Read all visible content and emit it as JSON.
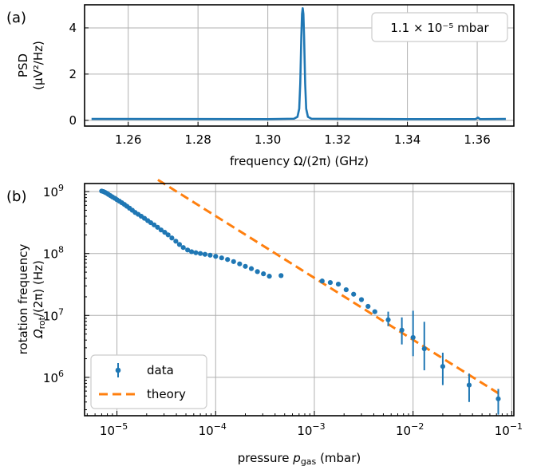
{
  "chart_data": [
    {
      "panel_label": "(a)",
      "type": "line",
      "xlabel": "frequency Ω/(2π) (GHz)",
      "ylabel_line1": "PSD",
      "ylabel_line2": "(μV²/Hz)",
      "annotation": "1.1 × 10⁻⁵ mbar",
      "xlim": [
        1.2475,
        1.3705
      ],
      "ylim": [
        -0.25,
        5.0
      ],
      "x_ticks": [
        {
          "v": 1.26,
          "label": "1.26"
        },
        {
          "v": 1.28,
          "label": "1.28"
        },
        {
          "v": 1.3,
          "label": "1.30"
        },
        {
          "v": 1.32,
          "label": "1.32"
        },
        {
          "v": 1.34,
          "label": "1.34"
        },
        {
          "v": 1.36,
          "label": "1.36"
        }
      ],
      "y_ticks": [
        {
          "v": 0,
          "label": "0"
        },
        {
          "v": 2,
          "label": "2"
        },
        {
          "v": 4,
          "label": "4"
        }
      ],
      "grid": true,
      "series": [
        {
          "color": "#1f77b4",
          "x": [
            1.2495,
            1.3,
            1.3075,
            1.3085,
            1.309,
            1.3093,
            1.3096,
            1.3098,
            1.31,
            1.3102,
            1.3104,
            1.3107,
            1.311,
            1.3115,
            1.3125,
            1.34,
            1.3595,
            1.3602,
            1.3608,
            1.3682
          ],
          "y": [
            0.06,
            0.05,
            0.07,
            0.15,
            0.5,
            1.6,
            3.6,
            4.6,
            4.85,
            4.6,
            3.6,
            1.6,
            0.5,
            0.15,
            0.07,
            0.05,
            0.05,
            0.12,
            0.05,
            0.06
          ]
        }
      ]
    },
    {
      "panel_label": "(b)",
      "type": "scatter",
      "xscale": "log",
      "yscale": "log",
      "xlabel": "pressure p_gas (mbar)",
      "xlabel_main": "pressure ",
      "xlabel_var": "p",
      "xlabel_sub": "gas",
      "xlabel_unit": " (mbar)",
      "ylabel_line1": "rotation frequency",
      "ylabel_line2": "Ω_rot/(2π) (Hz)",
      "ylabel_var": "Ω",
      "ylabel_sub": "rot",
      "ylabel_unit": "/(2π) (Hz)",
      "xlim": [
        4.7e-06,
        0.105
      ],
      "ylim": [
        240000.0,
        1350000000.0
      ],
      "x_ticks": [
        {
          "v": 1e-05,
          "base": "10",
          "exp": "−5"
        },
        {
          "v": 0.0001,
          "base": "10",
          "exp": "−4"
        },
        {
          "v": 0.001,
          "base": "10",
          "exp": "−3"
        },
        {
          "v": 0.01,
          "base": "10",
          "exp": "−2"
        },
        {
          "v": 0.1,
          "base": "10",
          "exp": "−1"
        }
      ],
      "y_ticks": [
        {
          "v": 1000000.0,
          "base": "10",
          "exp": "6"
        },
        {
          "v": 10000000.0,
          "base": "10",
          "exp": "7"
        },
        {
          "v": 100000000.0,
          "base": "10",
          "exp": "8"
        },
        {
          "v": 1000000000.0,
          "base": "10",
          "exp": "9"
        }
      ],
      "grid": true,
      "legend": {
        "placement": "lower-left",
        "entries": [
          {
            "label": "data",
            "marker": "errorbar-point",
            "color": "#1f77b4"
          },
          {
            "label": "theory",
            "marker": "dashed-line",
            "color": "#ff7f0e"
          }
        ]
      },
      "series": [
        {
          "name": "data",
          "color": "#1f77b4",
          "x": [
            7e-06,
            7.3e-06,
            7.6e-06,
            7.9e-06,
            8.2e-06,
            8.6e-06,
            9e-06,
            9.5e-06,
            1e-05,
            1.06e-05,
            1.12e-05,
            1.19e-05,
            1.26e-05,
            1.34e-05,
            1.43e-05,
            1.53e-05,
            1.64e-05,
            1.76e-05,
            1.9e-05,
            2.05e-05,
            2.2e-05,
            2.38e-05,
            2.58e-05,
            2.8e-05,
            3.05e-05,
            3.3e-05,
            3.6e-05,
            3.95e-05,
            4.3e-05,
            4.7e-05,
            5.2e-05,
            5.7e-05,
            6.3e-05,
            7e-05,
            7.8e-05,
            8.8e-05,
            0.0001,
            0.000115,
            0.000132,
            0.000152,
            0.000175,
            0.0002,
            0.00023,
            0.000265,
            0.000305,
            0.00035,
            0.00046,
            0.0012,
            0.00145,
            0.00175,
            0.0021,
            0.0025,
            0.003,
            0.0035,
            0.0041,
            0.0056,
            0.0077,
            0.01,
            0.013,
            0.02,
            0.037,
            0.073
          ],
          "y": [
            1020000000.0,
            1000000000.0,
            970000000.0,
            940000000.0,
            900000000.0,
            860000000.0,
            820000000.0,
            780000000.0,
            740000000.0,
            700000000.0,
            660000000.0,
            620000000.0,
            580000000.0,
            540000000.0,
            500000000.0,
            460000000.0,
            430000000.0,
            400000000.0,
            370000000.0,
            340000000.0,
            315000000.0,
            290000000.0,
            265000000.0,
            240000000.0,
            220000000.0,
            200000000.0,
            178000000.0,
            158000000.0,
            140000000.0,
            125000000.0,
            114000000.0,
            107000000.0,
            103000000.0,
            100000000.0,
            97000000.0,
            94000000.0,
            90000000.0,
            85000000.0,
            80000000.0,
            74000000.0,
            68000000.0,
            62000000.0,
            57000000.0,
            51000000.0,
            47000000.0,
            43000000.0,
            44000000.0,
            36000000.0,
            34000000.0,
            32000000.0,
            26000000.0,
            22000000.0,
            18000000.0,
            14000000.0,
            11500000.0,
            8500000.0,
            5800000.0,
            4400000.0,
            2900000.0,
            1500000.0,
            750000.0,
            450000.0
          ],
          "err_lo": [
            0,
            0,
            0,
            0,
            0,
            0,
            0,
            0,
            0,
            0,
            0,
            0,
            0,
            0,
            0,
            0,
            0,
            0,
            0,
            0,
            0,
            0,
            0,
            0,
            0,
            0,
            0,
            0,
            0,
            0,
            0,
            0,
            0,
            0,
            0,
            0,
            0,
            0,
            0,
            0,
            0,
            0,
            0,
            0,
            0,
            0,
            0,
            0,
            0,
            0,
            0,
            0,
            0,
            0,
            0,
            1800000.0,
            2400000.0,
            2200000.0,
            1600000.0,
            750000.0,
            350000.0,
            200000.0
          ],
          "err_hi": [
            0,
            0,
            0,
            0,
            0,
            0,
            0,
            0,
            0,
            0,
            0,
            0,
            0,
            0,
            0,
            0,
            0,
            0,
            0,
            0,
            0,
            0,
            0,
            0,
            0,
            0,
            0,
            0,
            0,
            0,
            0,
            0,
            0,
            0,
            0,
            0,
            0,
            0,
            0,
            0,
            0,
            0,
            0,
            0,
            0,
            0,
            0,
            0,
            0,
            0,
            0,
            0,
            0,
            0,
            0,
            3000000.0,
            3500000.0,
            7500000.0,
            5000000.0,
            1000000.0,
            400000.0,
            200000.0
          ]
        },
        {
          "name": "theory",
          "color": "#ff7f0e",
          "x": [
            2.6e-05,
            0.075
          ],
          "y": [
            1550000000.0,
            540000.0
          ]
        }
      ]
    }
  ]
}
